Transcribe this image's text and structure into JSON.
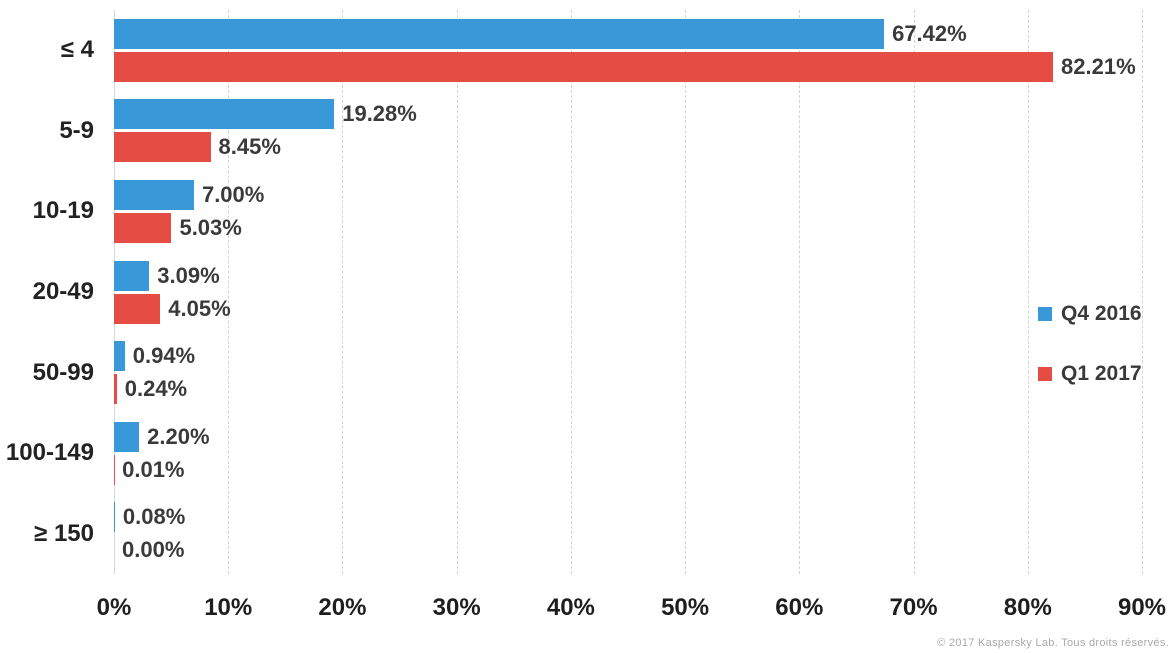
{
  "chart_data": {
    "type": "bar",
    "orientation": "horizontal",
    "title": "",
    "categories": [
      "≤ 4",
      "5-9",
      "10-19",
      "20-49",
      "50-99",
      "100-149",
      "≥ 150"
    ],
    "series": [
      {
        "name": "Q4 2016",
        "color": "#3998d8",
        "values": [
          67.42,
          19.28,
          7.0,
          3.09,
          0.94,
          2.2,
          0.08
        ],
        "value_labels": [
          "67.42%",
          "19.28%",
          "7.00%",
          "3.09%",
          "0.94%",
          "2.20%",
          "0.08%"
        ]
      },
      {
        "name": "Q1 2017",
        "color": "#e54d44",
        "values": [
          82.21,
          8.45,
          5.03,
          4.05,
          0.24,
          0.01,
          0.0
        ],
        "value_labels": [
          "82.21%",
          "8.45%",
          "5.03%",
          "4.05%",
          "0.24%",
          "0.01%",
          "0.00%"
        ]
      }
    ],
    "x_axis": {
      "min": 0,
      "max": 90,
      "tick_step": 10,
      "tick_labels": [
        "0%",
        "10%",
        "20%",
        "30%",
        "40%",
        "50%",
        "60%",
        "70%",
        "80%",
        "90%"
      ]
    },
    "legend": {
      "position": "right",
      "entries": [
        "Q4 2016",
        "Q1 2017"
      ]
    },
    "grid": "vertical-dashed"
  },
  "footer": {
    "copyright": "© 2017 Kaspersky Lab. Tous droits réservés."
  }
}
